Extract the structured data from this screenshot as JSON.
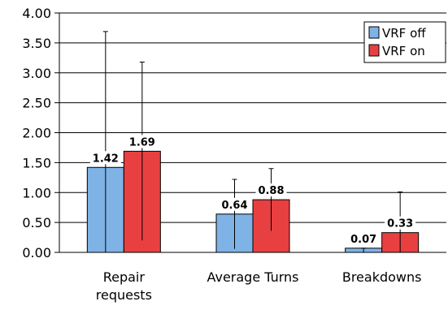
{
  "chart_data": {
    "type": "bar",
    "categories": [
      [
        "Repair",
        "requests"
      ],
      [
        "Average Turns"
      ],
      [
        "Breakdowns"
      ]
    ],
    "series": [
      {
        "name": "VRF off",
        "color": "#7fb2e5",
        "values": [
          1.42,
          0.64,
          0.07
        ],
        "error_upper": [
          3.69,
          1.22,
          0.07
        ],
        "error_lower": [
          0.0,
          0.06,
          0.0
        ],
        "labels": [
          "1.42",
          "0.64",
          "0.07"
        ]
      },
      {
        "name": "VRF on",
        "color": "#e84040",
        "values": [
          1.69,
          0.88,
          0.33
        ],
        "error_upper": [
          3.18,
          1.4,
          1.01
        ],
        "error_lower": [
          0.2,
          0.36,
          0.0
        ],
        "labels": [
          "1.69",
          "0.88",
          "0.33"
        ]
      }
    ],
    "yticks": [
      "0.00",
      "0.50",
      "1.00",
      "1.50",
      "2.00",
      "2.50",
      "3.00",
      "3.50",
      "4.00"
    ],
    "ylim": [
      0,
      4
    ],
    "grid": true,
    "legend_position": "top-right",
    "title": "",
    "xlabel": "",
    "ylabel": ""
  }
}
